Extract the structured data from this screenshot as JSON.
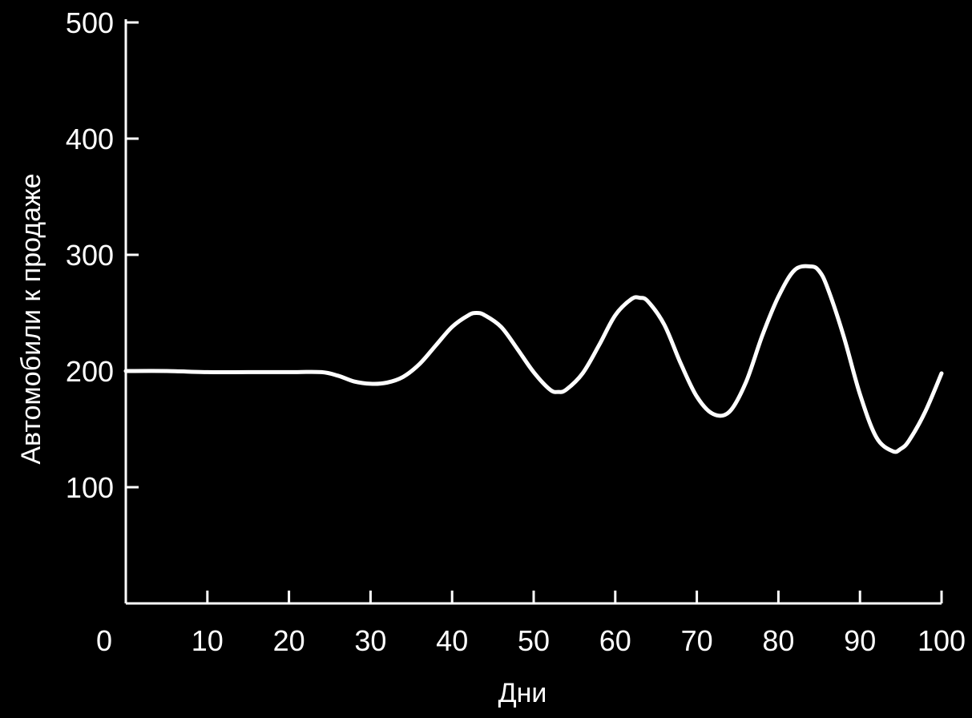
{
  "colors": {
    "background": "#000000",
    "foreground": "#ffffff"
  },
  "chart_data": {
    "type": "line",
    "title": "",
    "xlabel": "Дни",
    "ylabel": "Автомобили к продаже",
    "xlim": [
      0,
      100
    ],
    "ylim": [
      0,
      500
    ],
    "x_ticks": [
      0,
      10,
      20,
      30,
      40,
      50,
      60,
      70,
      80,
      90,
      100
    ],
    "y_ticks": [
      100,
      200,
      300,
      400,
      500
    ],
    "grid": false,
    "legend": "none",
    "series": [
      {
        "x": [
          0,
          5,
          10,
          15,
          20,
          24,
          26,
          28,
          30,
          32,
          34,
          36,
          38,
          40,
          42,
          43,
          44,
          46,
          48,
          50,
          52,
          53,
          54,
          56,
          58,
          60,
          62,
          63,
          64,
          66,
          68,
          70,
          72,
          74,
          76,
          78,
          80,
          82,
          84,
          85,
          86,
          88,
          90,
          92,
          94,
          95,
          96,
          98,
          100
        ],
        "y": [
          200,
          200,
          199,
          199,
          199,
          199,
          196,
          191,
          189,
          190,
          195,
          206,
          222,
          238,
          248,
          250,
          248,
          238,
          219,
          199,
          184,
          182,
          184,
          198,
          222,
          248,
          262,
          263,
          260,
          240,
          207,
          178,
          163,
          165,
          190,
          230,
          264,
          287,
          290,
          286,
          272,
          230,
          180,
          143,
          131,
          133,
          140,
          165,
          198
        ]
      }
    ]
  }
}
